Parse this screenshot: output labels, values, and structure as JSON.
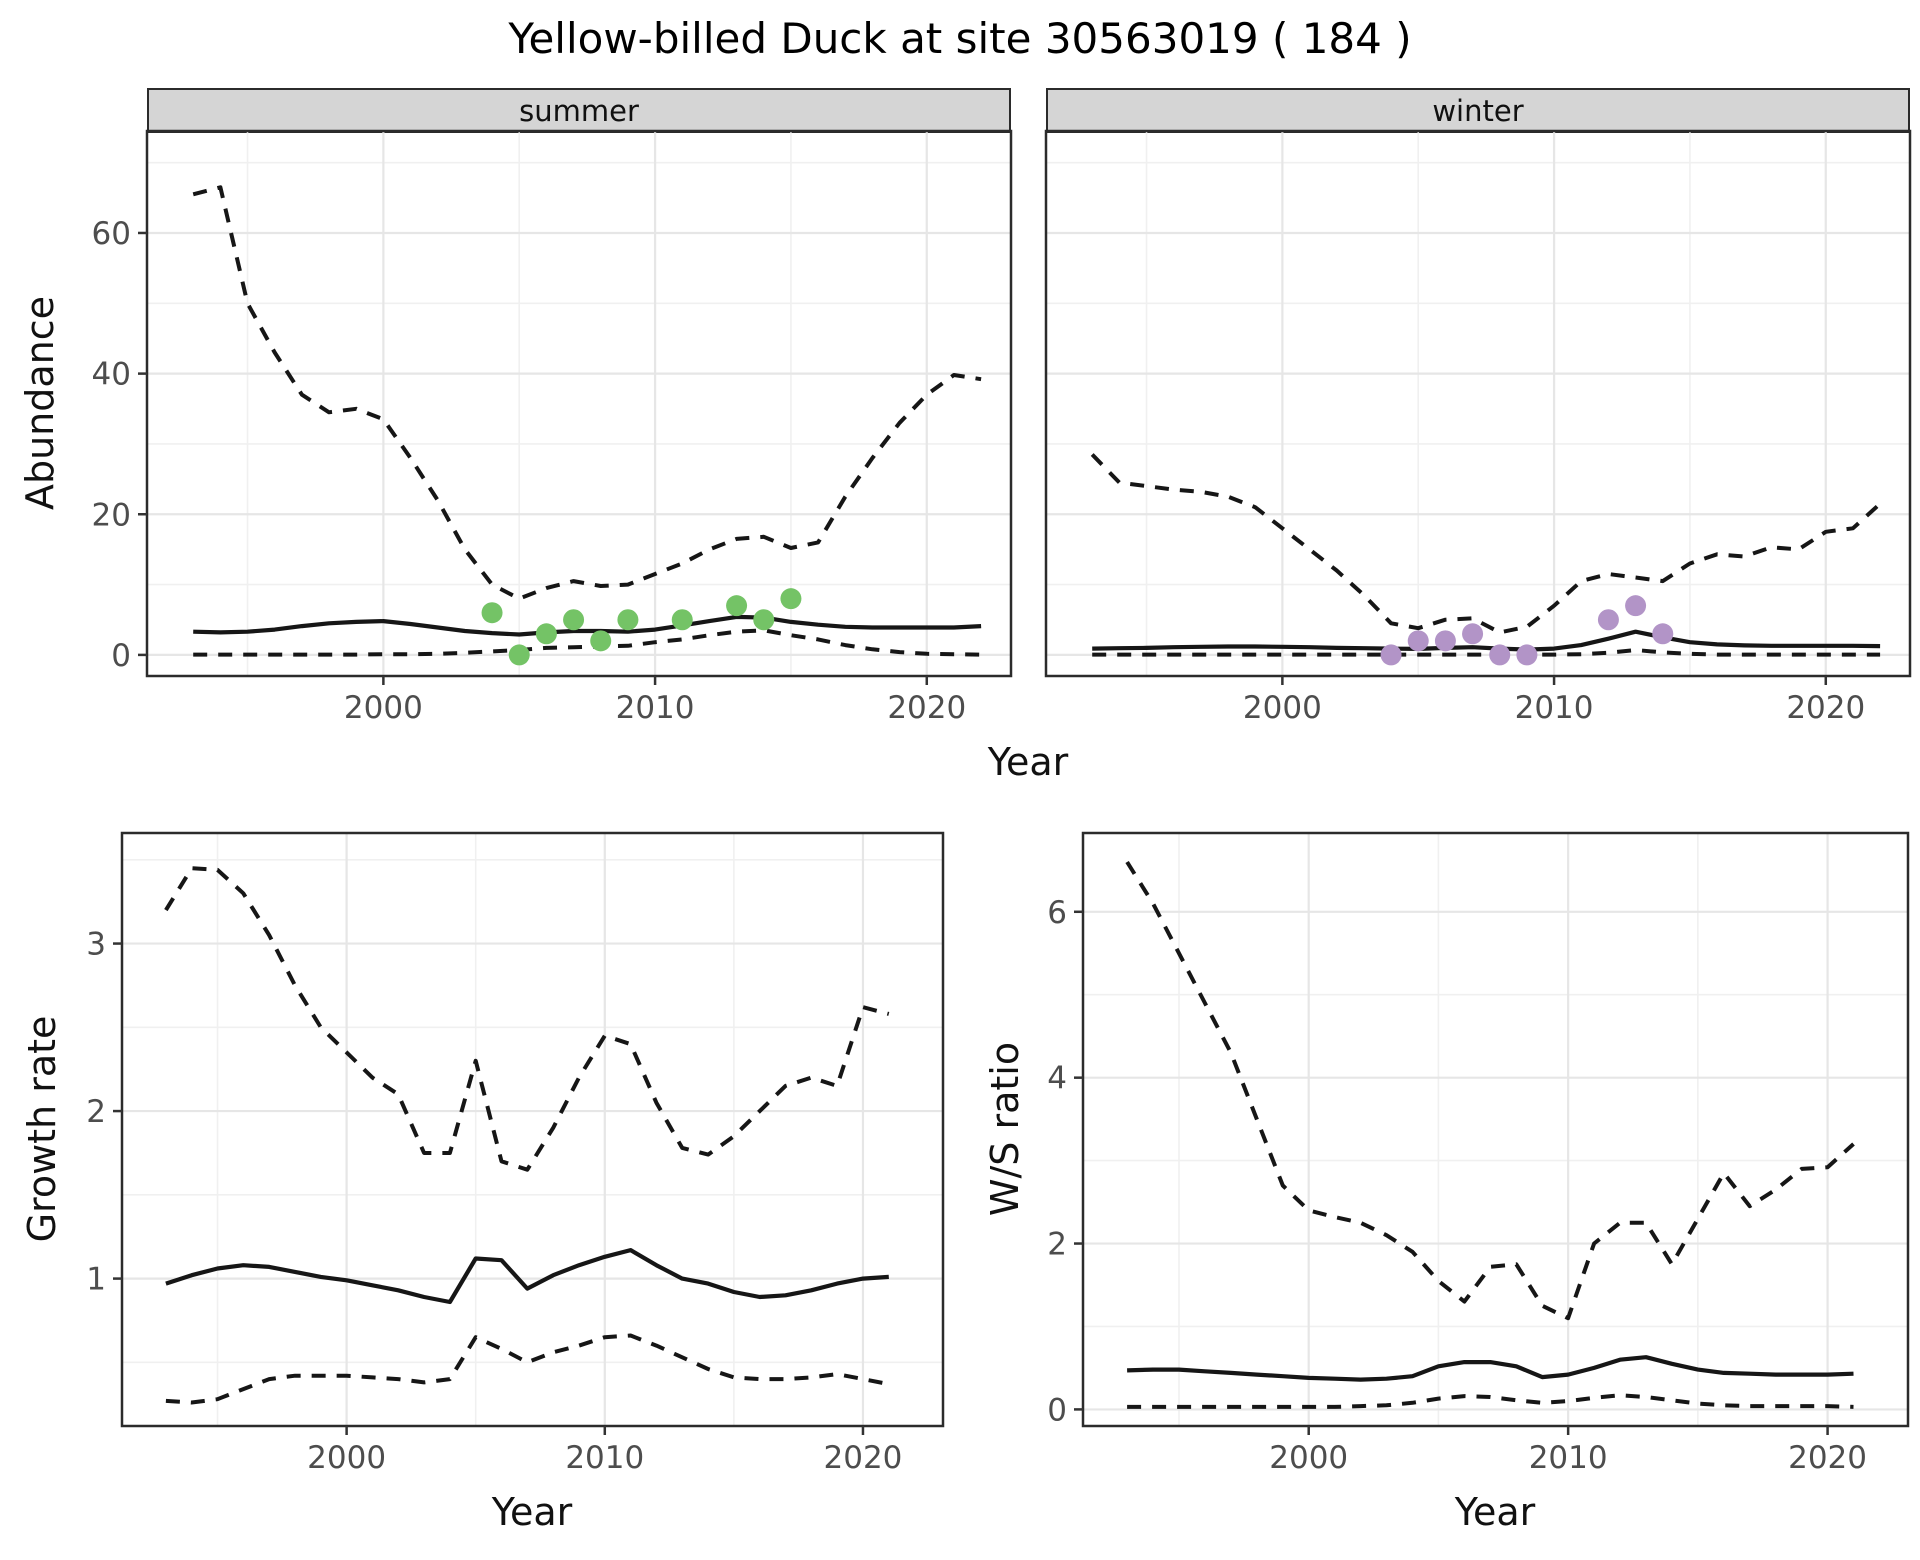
{
  "title": "Yellow-billed Duck at site 30563019 ( 184 )",
  "axes": {
    "x_label": "Year",
    "abundance_label": "Abundance",
    "growth_label": "Growth rate",
    "ws_label": "W/S ratio"
  },
  "facets": {
    "summer": "summer",
    "winter": "winter"
  },
  "colors": {
    "summer_points": "#74c366",
    "winter_points": "#b294c7",
    "line": "#161616",
    "strip_bg": "#d5d5d5",
    "panel_border": "#2b2b2b",
    "grid_major": "#e6e6e6",
    "grid_minor": "#f0f0f0",
    "tick_label": "#4d4d4d",
    "tick_mark": "#333333"
  },
  "chart_data": [
    {
      "id": "abundance-summer",
      "type": "line",
      "facet_label": "summer",
      "xlabel": "Year",
      "ylabel": "Abundance",
      "xlim": [
        1991.3,
        2023.1
      ],
      "ylim": [
        -3,
        74.5
      ],
      "xticks": [
        2000,
        2010,
        2020
      ],
      "xticks_minor": [
        1995,
        2005,
        2015
      ],
      "yticks": [
        0,
        20,
        40,
        60
      ],
      "yticks_minor": [
        10,
        30,
        50,
        70
      ],
      "show_y_tick_labels": true,
      "grid": "on",
      "legend": "none",
      "x": [
        1993,
        1994,
        1995,
        1996,
        1997,
        1998,
        1999,
        2000,
        2001,
        2002,
        2003,
        2004,
        2005,
        2006,
        2007,
        2008,
        2009,
        2010,
        2011,
        2012,
        2013,
        2014,
        2015,
        2016,
        2017,
        2018,
        2019,
        2020,
        2021,
        2022
      ],
      "series": [
        {
          "name": "upper_ci",
          "style": "dashed",
          "values": [
            65.5,
            66.5,
            50,
            43,
            37,
            34.5,
            35,
            33.5,
            28,
            22,
            15,
            10,
            8,
            9.5,
            10.5,
            9.8,
            10,
            11.5,
            13,
            15,
            16.5,
            16.8,
            15.2,
            16,
            22.5,
            28,
            33,
            37,
            39.8,
            39.2
          ]
        },
        {
          "name": "lower_ci",
          "style": "dashed",
          "values": [
            0.05,
            0.05,
            0.05,
            0.05,
            0.05,
            0.05,
            0.05,
            0.1,
            0.1,
            0.15,
            0.3,
            0.5,
            0.7,
            1.0,
            1.1,
            1.2,
            1.3,
            1.8,
            2.2,
            2.8,
            3.3,
            3.5,
            2.8,
            2.2,
            1.4,
            0.8,
            0.4,
            0.15,
            0.1,
            0.05
          ]
        },
        {
          "name": "median",
          "style": "solid",
          "values": [
            3.3,
            3.2,
            3.3,
            3.6,
            4.1,
            4.5,
            4.7,
            4.8,
            4.4,
            3.9,
            3.4,
            3.1,
            2.9,
            3.2,
            3.4,
            3.4,
            3.3,
            3.6,
            4.2,
            4.8,
            5.4,
            5.3,
            4.7,
            4.3,
            4.0,
            3.9,
            3.9,
            3.9,
            3.9,
            4.1
          ]
        }
      ],
      "points": {
        "name": "observed-counts-summer",
        "color": "#74c366",
        "data": [
          [
            2004,
            6
          ],
          [
            2005,
            0
          ],
          [
            2006,
            3
          ],
          [
            2007,
            5
          ],
          [
            2008,
            2
          ],
          [
            2009,
            5
          ],
          [
            2011,
            5
          ],
          [
            2013,
            7
          ],
          [
            2014,
            5
          ],
          [
            2015,
            8
          ]
        ]
      }
    },
    {
      "id": "abundance-winter",
      "type": "line",
      "facet_label": "winter",
      "xlabel": "Year",
      "ylabel": "Abundance",
      "xlim": [
        1991.3,
        2023.1
      ],
      "ylim": [
        -3,
        74.5
      ],
      "xticks": [
        2000,
        2010,
        2020
      ],
      "xticks_minor": [
        1995,
        2005,
        2015
      ],
      "yticks": [
        0,
        20,
        40,
        60
      ],
      "yticks_minor": [
        10,
        30,
        50,
        70
      ],
      "show_y_tick_labels": false,
      "grid": "on",
      "legend": "none",
      "x": [
        1993,
        1994,
        1995,
        1996,
        1997,
        1998,
        1999,
        2000,
        2001,
        2002,
        2003,
        2004,
        2005,
        2006,
        2007,
        2008,
        2009,
        2010,
        2011,
        2012,
        2013,
        2014,
        2015,
        2016,
        2017,
        2018,
        2019,
        2020,
        2021,
        2022
      ],
      "series": [
        {
          "name": "upper_ci",
          "style": "dashed",
          "values": [
            28.5,
            24.5,
            24,
            23.5,
            23.2,
            22.5,
            21,
            18,
            15,
            12,
            8.5,
            4.5,
            3.8,
            5,
            5.2,
            3.2,
            4,
            7,
            10.5,
            11.5,
            11,
            10.5,
            13,
            14.3,
            14,
            15.3,
            15,
            17.5,
            18,
            21.5
          ]
        },
        {
          "name": "lower_ci",
          "style": "dashed",
          "values": [
            0.05,
            0.05,
            0.05,
            0.05,
            0.05,
            0.05,
            0.05,
            0.05,
            0.05,
            0.05,
            0.05,
            0.05,
            0.05,
            0.05,
            0.05,
            0.05,
            0.05,
            0.05,
            0.1,
            0.3,
            0.7,
            0.35,
            0.15,
            0.05,
            0.05,
            0.05,
            0.05,
            0.05,
            0.05,
            0.05
          ]
        },
        {
          "name": "median",
          "style": "solid",
          "values": [
            0.9,
            0.95,
            1.0,
            1.1,
            1.15,
            1.2,
            1.2,
            1.15,
            1.1,
            1.0,
            0.95,
            0.9,
            0.85,
            1.0,
            1.1,
            0.9,
            0.75,
            0.9,
            1.4,
            2.3,
            3.3,
            2.5,
            1.8,
            1.5,
            1.35,
            1.3,
            1.3,
            1.3,
            1.3,
            1.25
          ]
        }
      ],
      "points": {
        "name": "observed-counts-winter",
        "color": "#b294c7",
        "data": [
          [
            2004,
            0
          ],
          [
            2005,
            2
          ],
          [
            2006,
            2
          ],
          [
            2007,
            3
          ],
          [
            2008,
            0
          ],
          [
            2009,
            0
          ],
          [
            2012,
            5
          ],
          [
            2013,
            7
          ],
          [
            2014,
            3
          ]
        ]
      }
    },
    {
      "id": "growth-rate",
      "type": "line",
      "facet_label": "",
      "xlabel": "Year",
      "ylabel": "Growth rate",
      "xlim": [
        1991.3,
        2023.1
      ],
      "ylim": [
        0.12,
        3.66
      ],
      "xticks": [
        2000,
        2010,
        2020
      ],
      "xticks_minor": [
        1995,
        2005,
        2015
      ],
      "yticks": [
        1,
        2,
        3
      ],
      "yticks_minor": [
        0.5,
        1.5,
        2.5,
        3.5
      ],
      "show_y_tick_labels": true,
      "grid": "on",
      "legend": "none",
      "x": [
        1993,
        1994,
        1995,
        1996,
        1997,
        1998,
        1999,
        2000,
        2001,
        2002,
        2003,
        2004,
        2005,
        2006,
        2007,
        2008,
        2009,
        2010,
        2011,
        2012,
        2013,
        2014,
        2015,
        2016,
        2017,
        2018,
        2019,
        2020,
        2021
      ],
      "series": [
        {
          "name": "upper_ci",
          "style": "dashed",
          "values": [
            3.2,
            3.45,
            3.44,
            3.3,
            3.05,
            2.75,
            2.5,
            2.35,
            2.2,
            2.1,
            1.75,
            1.75,
            2.3,
            1.7,
            1.65,
            1.9,
            2.2,
            2.45,
            2.4,
            2.05,
            1.78,
            1.74,
            1.85,
            2.0,
            2.15,
            2.2,
            2.15,
            2.62,
            2.58
          ]
        },
        {
          "name": "lower_ci",
          "style": "dashed",
          "values": [
            0.27,
            0.26,
            0.28,
            0.34,
            0.4,
            0.42,
            0.42,
            0.42,
            0.41,
            0.4,
            0.38,
            0.4,
            0.65,
            0.58,
            0.5,
            0.56,
            0.6,
            0.65,
            0.66,
            0.6,
            0.53,
            0.46,
            0.41,
            0.4,
            0.4,
            0.41,
            0.43,
            0.4,
            0.37
          ]
        },
        {
          "name": "median",
          "style": "solid",
          "values": [
            0.97,
            1.02,
            1.06,
            1.08,
            1.07,
            1.04,
            1.01,
            0.99,
            0.96,
            0.93,
            0.89,
            0.86,
            1.12,
            1.11,
            0.94,
            1.02,
            1.08,
            1.13,
            1.17,
            1.08,
            1.0,
            0.97,
            0.92,
            0.89,
            0.9,
            0.93,
            0.97,
            1.0,
            1.01
          ]
        }
      ],
      "points": null
    },
    {
      "id": "ws-ratio",
      "type": "line",
      "facet_label": "",
      "xlabel": "Year",
      "ylabel": "W/S ratio",
      "xlim": [
        1991.3,
        2023.1
      ],
      "ylim": [
        -0.2,
        6.95
      ],
      "xticks": [
        2000,
        2010,
        2020
      ],
      "xticks_minor": [
        1995,
        2005,
        2015
      ],
      "yticks": [
        0,
        2,
        4,
        6
      ],
      "yticks_minor": [
        1,
        3,
        5
      ],
      "show_y_tick_labels": true,
      "grid": "on",
      "legend": "none",
      "x": [
        1993,
        1994,
        1995,
        1996,
        1997,
        1998,
        1999,
        2000,
        2001,
        2002,
        2003,
        2004,
        2005,
        2006,
        2007,
        2008,
        2009,
        2010,
        2011,
        2012,
        2013,
        2014,
        2015,
        2016,
        2017,
        2018,
        2019,
        2020,
        2021
      ],
      "series": [
        {
          "name": "upper_ci",
          "style": "dashed",
          "values": [
            6.6,
            6.1,
            5.5,
            4.9,
            4.3,
            3.5,
            2.7,
            2.4,
            2.32,
            2.25,
            2.1,
            1.9,
            1.55,
            1.3,
            1.72,
            1.75,
            1.25,
            1.1,
            2.0,
            2.25,
            2.25,
            1.75,
            2.3,
            2.85,
            2.45,
            2.65,
            2.9,
            2.92,
            3.2
          ]
        },
        {
          "name": "lower_ci",
          "style": "dashed",
          "values": [
            0.03,
            0.03,
            0.03,
            0.03,
            0.03,
            0.03,
            0.03,
            0.03,
            0.03,
            0.04,
            0.05,
            0.08,
            0.13,
            0.16,
            0.15,
            0.11,
            0.08,
            0.1,
            0.14,
            0.17,
            0.15,
            0.11,
            0.07,
            0.05,
            0.04,
            0.04,
            0.04,
            0.04,
            0.03
          ]
        },
        {
          "name": "median",
          "style": "solid",
          "values": [
            0.47,
            0.48,
            0.48,
            0.46,
            0.44,
            0.42,
            0.4,
            0.38,
            0.37,
            0.36,
            0.37,
            0.4,
            0.52,
            0.57,
            0.57,
            0.52,
            0.39,
            0.42,
            0.5,
            0.6,
            0.63,
            0.55,
            0.48,
            0.44,
            0.43,
            0.42,
            0.42,
            0.42,
            0.43
          ]
        }
      ],
      "points": null
    }
  ]
}
